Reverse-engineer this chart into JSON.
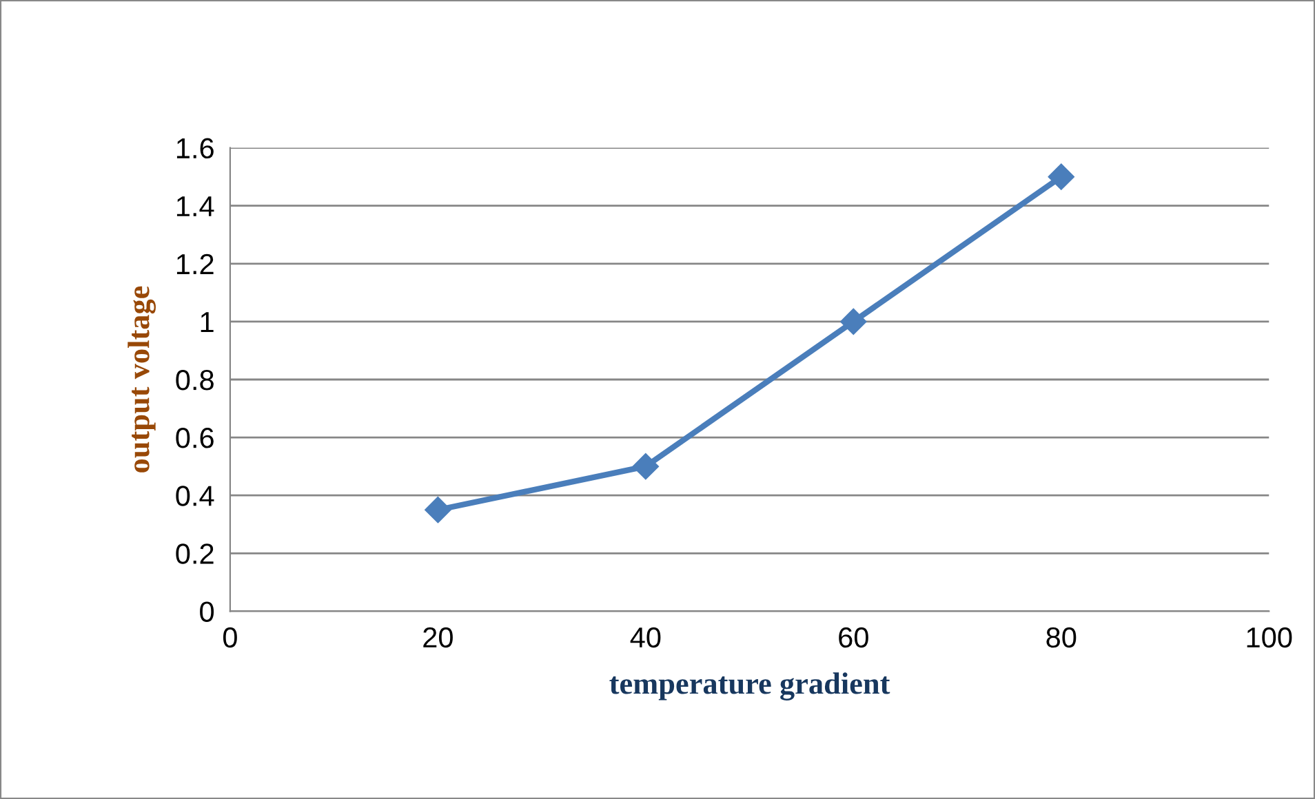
{
  "chart_data": {
    "type": "line",
    "xlabel": "temperature gradient",
    "ylabel": "output voltage",
    "x": [
      20,
      40,
      60,
      80
    ],
    "series": [
      {
        "color": "#4a7ebb",
        "values": [
          0.35,
          0.5,
          1.0,
          1.5
        ]
      }
    ],
    "xlim": [
      0,
      100
    ],
    "xticks": [
      0,
      20,
      40,
      60,
      80,
      100
    ],
    "ylim": [
      0,
      1.6
    ],
    "yticks": [
      0,
      {
        "value": 0.2,
        "label": "0.2"
      },
      {
        "value": 0.4,
        "label": "0.4"
      },
      {
        "value": 0.6,
        "label": "0.6"
      },
      {
        "value": 0.8,
        "label": "0.8"
      },
      1,
      {
        "value": 1.2,
        "label": "1.2"
      },
      {
        "value": 1.4,
        "label": "1.4"
      },
      {
        "value": 1.6,
        "label": "1.6"
      }
    ],
    "grid": "y",
    "marker": "diamond",
    "line_style": "solid",
    "legend": false
  }
}
